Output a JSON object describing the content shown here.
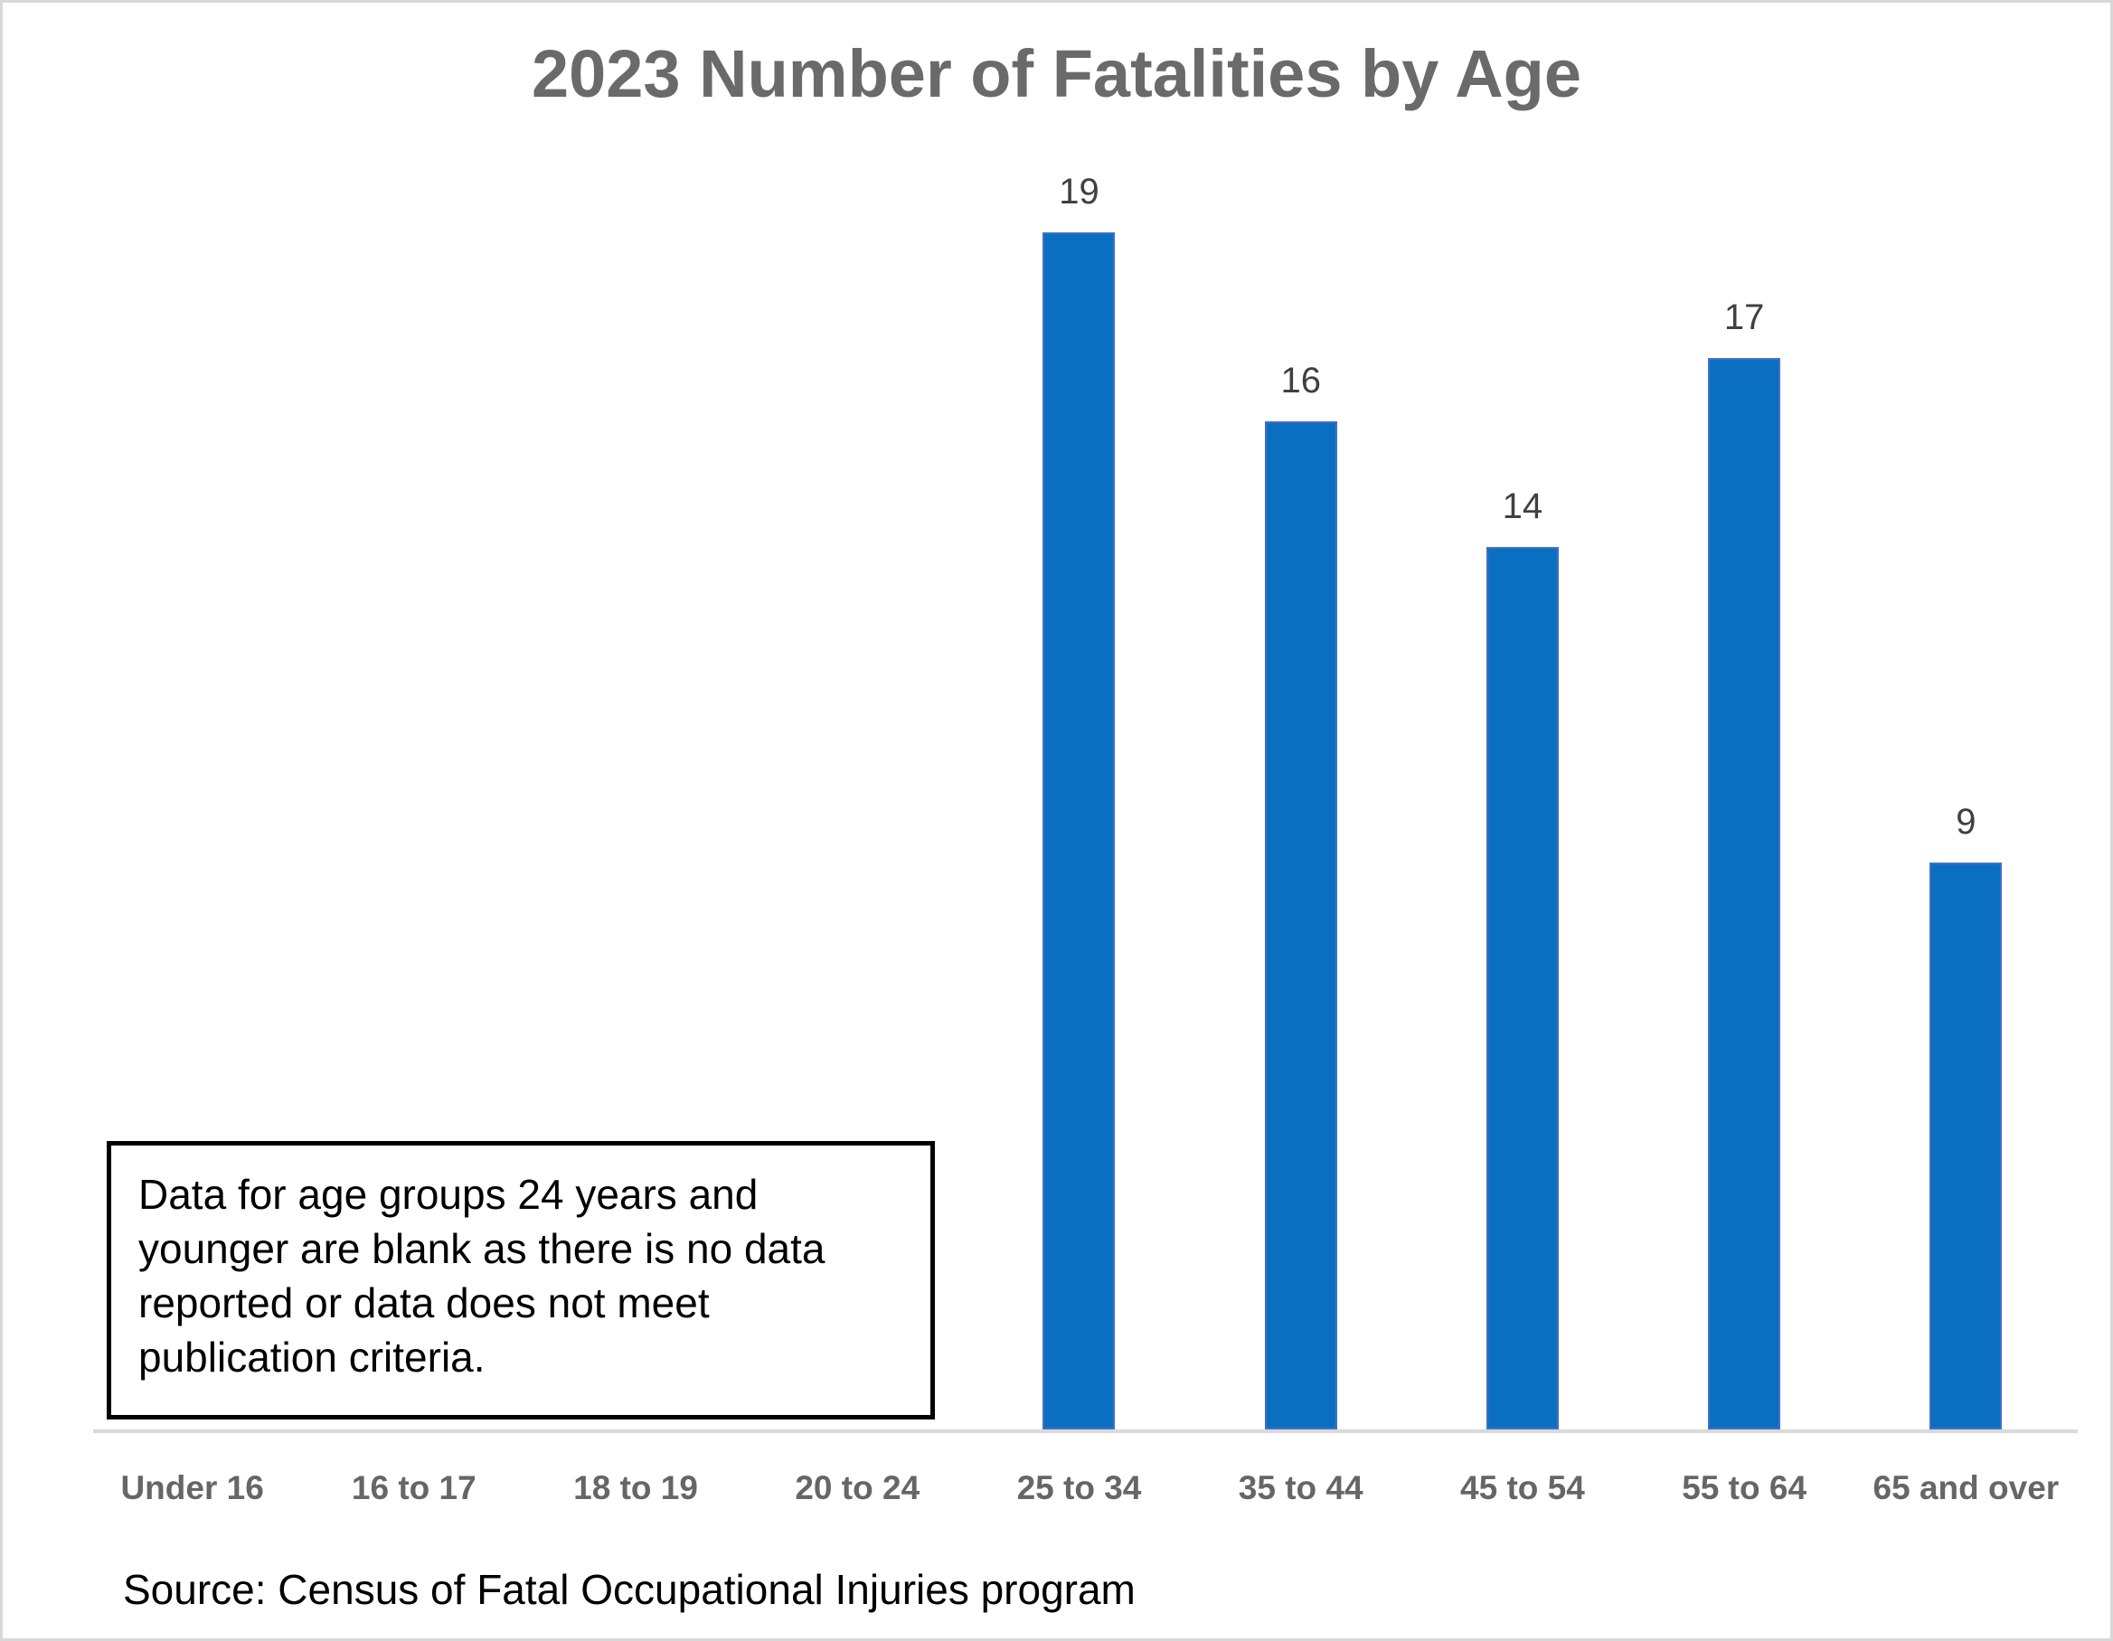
{
  "page": {
    "title": "2023 Number of Fatalities by Age",
    "annotation": "Data for age groups 24 years and younger are blank as there is no data reported or data does not meet publication criteria.",
    "source": "Source: Census of Fatal Occupational Injuries program"
  },
  "chart_data": {
    "type": "bar",
    "title": "2023 Number of Fatalities by Age",
    "categories": [
      "Under 16",
      "16 to 17",
      "18 to 19",
      "20 to 24",
      "25 to 34",
      "35 to 44",
      "45 to 54",
      "55 to 64",
      "65 and over"
    ],
    "values": [
      null,
      null,
      null,
      null,
      19,
      16,
      14,
      17,
      9
    ],
    "xlabel": "",
    "ylabel": "",
    "ylim": [
      0,
      20
    ],
    "grid": false,
    "legend": false,
    "y_axis_shown": false,
    "data_labels_shown": true,
    "bar_color": "#0b6fc1",
    "bar_border_color": "#4170c4",
    "axis_line_color": "#d9d9d9",
    "title_color": "#6a6a6a",
    "category_label_color": "#666666",
    "value_label_color": "#404040",
    "annotation": "Data for age groups 24 years and younger are blank as there is no data reported or data does not meet publication criteria.",
    "source": "Source: Census of Fatal Occupational Injuries program"
  }
}
